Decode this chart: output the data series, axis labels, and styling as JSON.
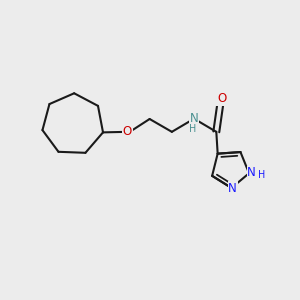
{
  "bg_color": "#ececec",
  "bond_color": "#1a1a1a",
  "n_color": "#1a1aff",
  "o_color": "#cc0000",
  "nh_color": "#4a9090",
  "lw": 1.5,
  "fs": 8.5,
  "fig_size": [
    3.0,
    3.0
  ],
  "dpi": 100,
  "xlim": [
    -0.05,
    1.05
  ],
  "ylim": [
    -0.05,
    1.05
  ]
}
